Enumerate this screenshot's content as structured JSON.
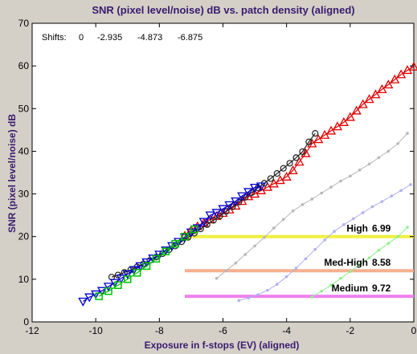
{
  "chart_data": {
    "type": "line",
    "title": "SNR (pixel level/noise) dB vs. patch density (aligned)",
    "xlabel": "Exposure in f-stops (EV) (aligned)",
    "ylabel": "SNR (pixel level/noise) dB",
    "xlim": [
      -12,
      0
    ],
    "ylim": [
      0,
      70
    ],
    "xticks": [
      -12,
      -10,
      -8,
      -6,
      -4,
      -2,
      0
    ],
    "yticks": [
      0,
      10,
      20,
      30,
      40,
      50,
      60,
      70
    ],
    "grid": false,
    "shifts_label": "Shifts:",
    "shifts": [
      "0",
      "-2.935",
      "-4.873",
      "-6.875"
    ],
    "annotations": [
      {
        "label": "High",
        "value": "6.99",
        "y": 20,
        "color": "#f0f040"
      },
      {
        "label": "Med-High",
        "value": "8.58",
        "y": 12,
        "color": "#f5b090"
      },
      {
        "label": "Medium",
        "value": "9.72",
        "y": 6,
        "color": "#f080f0"
      }
    ],
    "series": [
      {
        "color": "#e00000",
        "marker": "triangle-up",
        "x": [
          -7.2,
          -7.0,
          -6.8,
          -6.6,
          -6.4,
          -6.2,
          -6.0,
          -5.8,
          -5.6,
          -5.4,
          -5.2,
          -5.0,
          -4.8,
          -4.6,
          -4.4,
          -4.2,
          -4.0,
          -3.8,
          -3.6,
          -3.4,
          -3.2,
          -3.0,
          -2.8,
          -2.6,
          -2.4,
          -2.2,
          -2.0,
          -1.8,
          -1.6,
          -1.4,
          -1.2,
          -1.0,
          -0.8,
          -0.6,
          -0.4,
          -0.2,
          0.0
        ],
        "y": [
          20.2,
          21.5,
          22.4,
          23.2,
          24.0,
          24.8,
          25.5,
          26.3,
          27.2,
          28.3,
          29.4,
          30.0,
          30.8,
          31.6,
          32.4,
          33.2,
          34.0,
          35.5,
          37.5,
          39.5,
          41.8,
          42.8,
          43.8,
          44.8,
          45.8,
          46.8,
          48.0,
          49.5,
          51.0,
          52.2,
          53.3,
          54.5,
          55.6,
          56.8,
          58.0,
          59.0,
          59.8
        ]
      },
      {
        "color": "#202020",
        "marker": "circle",
        "x": [
          -9.5,
          -9.3,
          -9.1,
          -8.9,
          -8.7,
          -8.5,
          -8.3,
          -8.1,
          -7.9,
          -7.7,
          -7.5,
          -7.3,
          -7.1,
          -6.9,
          -6.7,
          -6.5,
          -6.3,
          -6.1,
          -5.9,
          -5.7,
          -5.5,
          -5.3,
          -5.1,
          -4.9,
          -4.7,
          -4.5,
          -4.3,
          -4.1,
          -3.9,
          -3.7,
          -3.5,
          -3.3,
          -3.1
        ],
        "y": [
          10.5,
          11.0,
          11.6,
          12.2,
          12.9,
          13.6,
          14.4,
          15.2,
          16.0,
          16.9,
          17.8,
          18.8,
          19.8,
          20.8,
          21.8,
          22.8,
          23.8,
          24.8,
          25.9,
          27.0,
          28.1,
          29.2,
          30.3,
          31.4,
          32.5,
          33.6,
          34.8,
          36.0,
          37.2,
          38.5,
          39.9,
          42.2,
          44.2
        ]
      },
      {
        "color": "#0000d0",
        "marker": "triangle-down",
        "x": [
          -10.4,
          -10.2,
          -10.0,
          -9.8,
          -9.6,
          -9.4,
          -9.2,
          -9.0,
          -8.8,
          -8.6,
          -8.4,
          -8.2,
          -8.0,
          -7.8,
          -7.6,
          -7.4,
          -7.2,
          -7.0,
          -6.8,
          -6.6,
          -6.4,
          -6.2,
          -6.0,
          -5.8,
          -5.6,
          -5.4,
          -5.2,
          -5.0,
          -4.8
        ],
        "y": [
          4.8,
          5.8,
          6.5,
          7.3,
          8.3,
          9.2,
          10.2,
          11.2,
          12.2,
          13.1,
          14.0,
          14.9,
          15.8,
          16.8,
          17.8,
          18.8,
          19.8,
          21.0,
          22.0,
          23.5,
          25.0,
          25.6,
          26.5,
          27.4,
          28.3,
          29.5,
          30.5,
          31.5,
          31.8
        ]
      },
      {
        "color": "#00c000",
        "marker": "square",
        "x": [
          -9.9,
          -9.6,
          -9.3,
          -9.0,
          -8.7,
          -8.4,
          -8.1,
          -7.8,
          -7.5,
          -7.2,
          -6.9
        ],
        "y": [
          6.0,
          7.2,
          8.6,
          10.0,
          11.5,
          13.1,
          14.8,
          16.5,
          18.3,
          20.0,
          21.7
        ]
      },
      {
        "color": "#b8b8b8",
        "marker": "dot",
        "x": [
          -6.2,
          -5.9,
          -5.6,
          -5.3,
          -5.0,
          -4.7,
          -4.4,
          -4.1,
          -3.8,
          -3.5,
          -3.2,
          -2.9,
          -2.6,
          -2.3,
          -2.0,
          -1.7,
          -1.4,
          -1.1,
          -0.8,
          -0.5,
          -0.2
        ],
        "y": [
          10.2,
          12.0,
          13.8,
          15.8,
          17.8,
          19.8,
          22.0,
          24.0,
          26.0,
          27.5,
          28.8,
          30.2,
          31.6,
          33.0,
          34.2,
          35.6,
          37.0,
          38.5,
          40.0,
          41.8,
          44.2
        ]
      },
      {
        "color": "#b0b0f0",
        "marker": "dot",
        "x": [
          -5.5,
          -5.2,
          -4.9,
          -4.6,
          -4.3,
          -4.0,
          -3.7,
          -3.4,
          -3.1,
          -2.8,
          -2.5,
          -2.2,
          -1.9,
          -1.6,
          -1.3,
          -1.0,
          -0.7,
          -0.4,
          -0.1
        ],
        "y": [
          5.0,
          5.6,
          6.4,
          7.4,
          8.8,
          10.6,
          12.6,
          14.8,
          17.0,
          19.2,
          21.2,
          22.8,
          24.2,
          25.6,
          27.0,
          28.2,
          29.5,
          30.8,
          32.2
        ]
      },
      {
        "color": "#90f090",
        "marker": "dot",
        "x": [
          -3.2,
          -2.9,
          -2.6,
          -2.3,
          -2.0,
          -1.7,
          -1.4,
          -1.1,
          -0.8,
          -0.5,
          -0.2
        ],
        "y": [
          5.8,
          7.2,
          8.6,
          10.2,
          11.8,
          13.4,
          15.0,
          16.8,
          18.4,
          20.0,
          22.2
        ]
      }
    ]
  }
}
